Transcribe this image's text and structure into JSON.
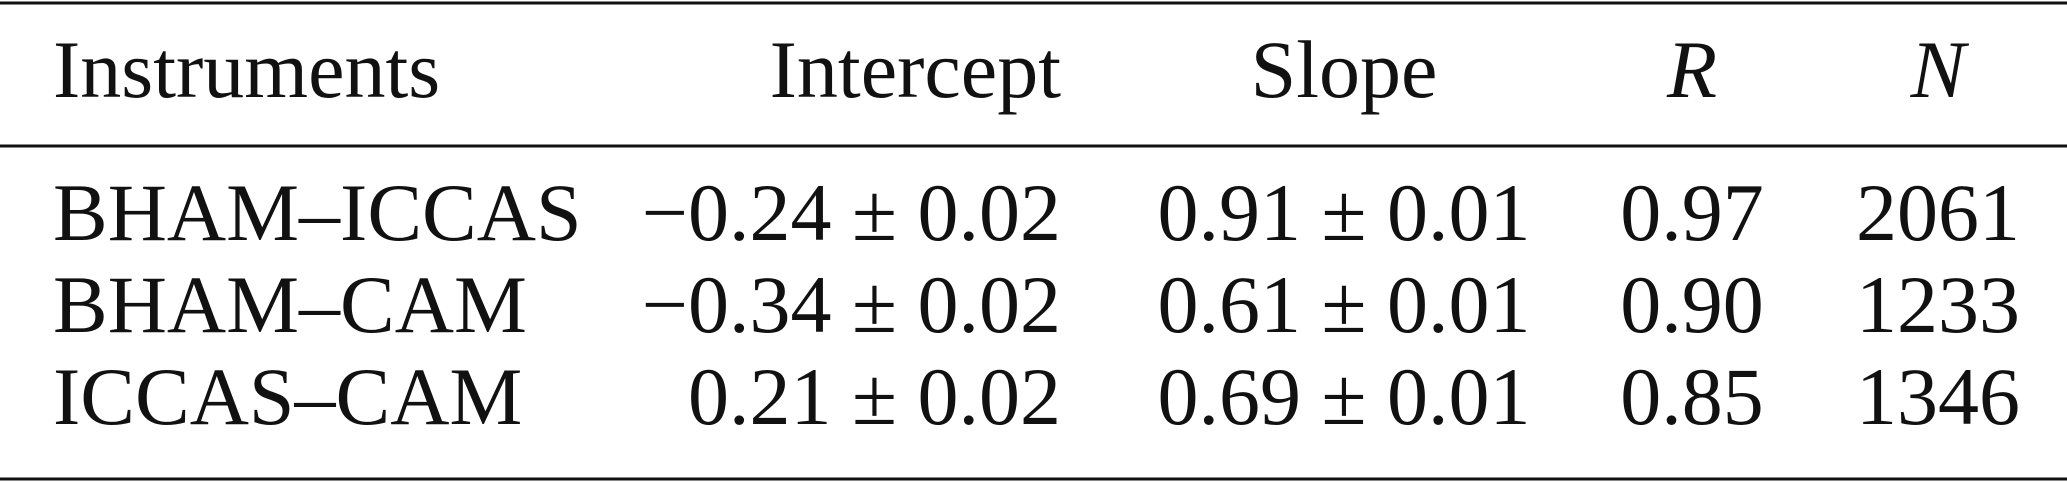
{
  "table": {
    "header": [
      "Instruments",
      "Intercept",
      "Slope",
      "R",
      "N"
    ],
    "rows": [
      [
        "BHAM–ICCAS",
        "−0.24 ± 0.02",
        "0.91 ± 0.01",
        "0.97",
        "2061"
      ],
      [
        "BHAM–CAM",
        "−0.34 ± 0.02",
        "0.61 ± 0.01",
        "0.90",
        "1233"
      ],
      [
        "ICCAS–CAM",
        "0.21 ± 0.02",
        "0.69 ± 0.01",
        "0.85",
        "1346"
      ]
    ]
  }
}
